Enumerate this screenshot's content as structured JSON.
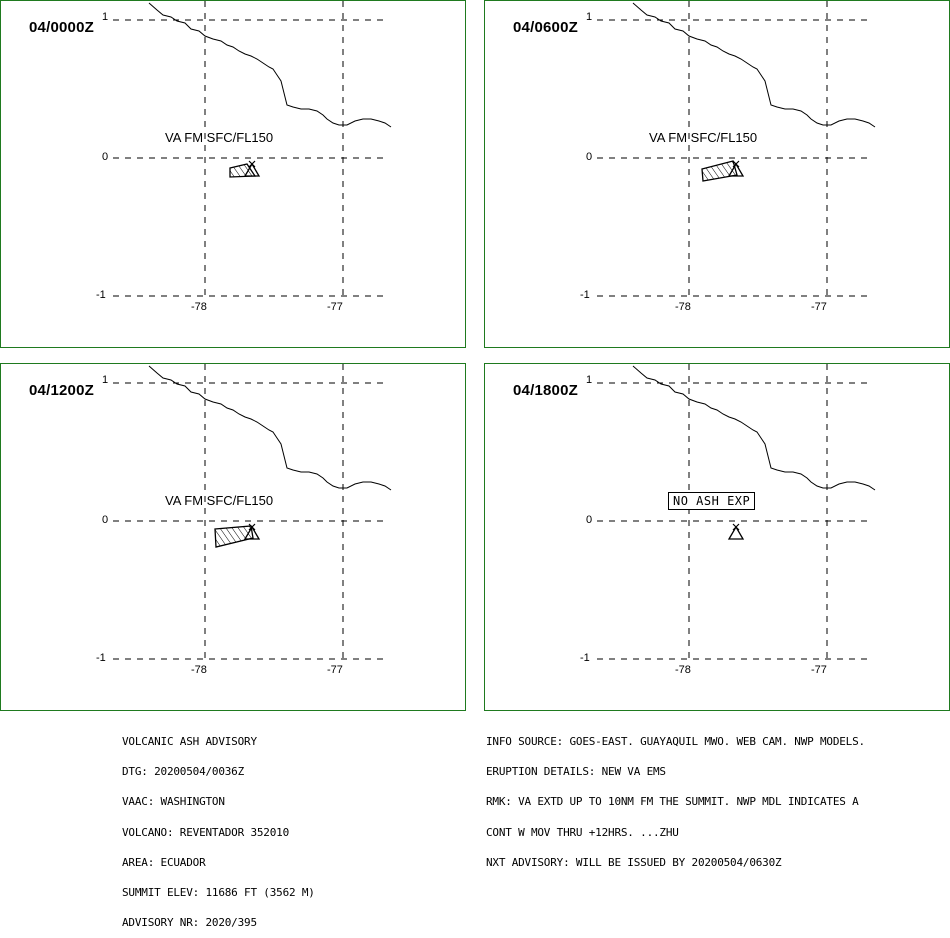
{
  "panels": [
    {
      "time": "04/0000Z",
      "label": "VA FM SFC/FL150",
      "no_ash": false,
      "plume": "small"
    },
    {
      "time": "04/0600Z",
      "label": "VA FM SFC/FL150",
      "no_ash": false,
      "plume": "medium"
    },
    {
      "time": "04/1200Z",
      "label": "VA FM SFC/FL150",
      "no_ash": false,
      "plume": "large"
    },
    {
      "time": "04/1800Z",
      "label": "NO ASH EXP",
      "no_ash": true,
      "plume": "none"
    }
  ],
  "axis": {
    "lat_ticks": [
      "1",
      "0",
      "-1"
    ],
    "lon_ticks": [
      "-78",
      "-77"
    ]
  },
  "advisory_left": {
    "line1": "VOLCANIC ASH ADVISORY",
    "line2": "DTG: 20200504/0036Z",
    "line3": "VAAC: WASHINGTON",
    "line4": "VOLCANO: REVENTADOR 352010",
    "line5": "AREA: ECUADOR",
    "line6": "SUMMIT ELEV: 11686 FT (3562 M)",
    "line7": "ADVISORY NR: 2020/395"
  },
  "advisory_right": {
    "line1": "INFO SOURCE: GOES-EAST. GUAYAQUIL MWO. WEB CAM. NWP MODELS.",
    "line2": "ERUPTION DETAILS: NEW VA EMS",
    "line3": "RMK: VA EXTD UP TO 10NM FM THE SUMMIT. NWP MDL INDICATES A",
    "line4": "CONT W MOV THRU +12HRS. ...ZHU",
    "line5": "NXT ADVISORY: WILL BE ISSUED BY 20200504/0630Z"
  },
  "colors": {
    "frame": "#1f7a1f",
    "lines": "#000000"
  },
  "icons": {
    "volcano": "volcano-triangle-icon",
    "plume": "hatched-plume-polygon"
  }
}
